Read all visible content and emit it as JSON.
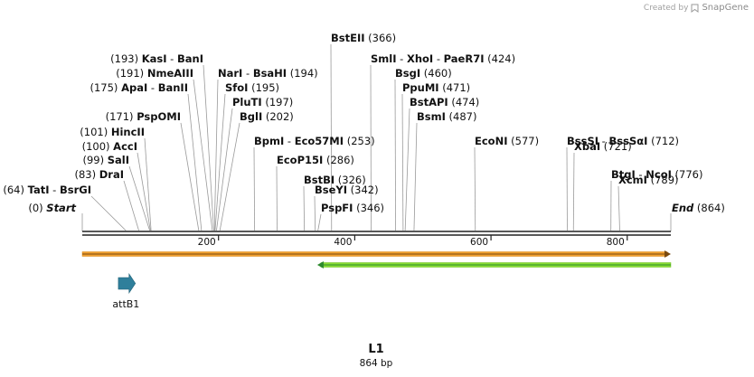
{
  "credit": {
    "prefix": "Created by",
    "brand": "SnapGene",
    "icon": "snapgene-logo-icon"
  },
  "sequence": {
    "name": "L1",
    "length": 864,
    "length_label": "864 bp"
  },
  "ends": {
    "start_label": "Start",
    "start_pos": "(0)",
    "end_label": "End",
    "end_pos": "(864)"
  },
  "axis": {
    "ticks": [
      200,
      400,
      600,
      800
    ]
  },
  "colors": {
    "forward_bar": "#f0a030",
    "forward_bar_edge": "#e08a10",
    "reverse_bar": "#88dd33",
    "reverse_bar_edge": "#2d8a2d",
    "arrow_dark": "#7a4a10",
    "feature": "#2f7f9b"
  },
  "sites": [
    {
      "cut": 64,
      "names": [
        "TatI",
        "BsrGI"
      ],
      "pos_label": "(64)",
      "pos_side": "left"
    },
    {
      "cut": 83,
      "names": [
        "DraI"
      ],
      "pos_label": "(83)",
      "pos_side": "left"
    },
    {
      "cut": 99,
      "names": [
        "SalI"
      ],
      "pos_label": "(99)",
      "pos_side": "left"
    },
    {
      "cut": 100,
      "names": [
        "AccI"
      ],
      "pos_label": "(100)",
      "pos_side": "left"
    },
    {
      "cut": 101,
      "names": [
        "HincII"
      ],
      "pos_label": "(101)",
      "pos_side": "left"
    },
    {
      "cut": 171,
      "names": [
        "PspOMI"
      ],
      "pos_label": "(171)",
      "pos_side": "left"
    },
    {
      "cut": 175,
      "names": [
        "ApaI",
        "BanII"
      ],
      "pos_label": "(175)",
      "pos_side": "left"
    },
    {
      "cut": 191,
      "names": [
        "NmeAIII"
      ],
      "pos_label": "(191)",
      "pos_side": "left"
    },
    {
      "cut": 193,
      "names": [
        "KasI",
        "BanI"
      ],
      "pos_label": "(193)",
      "pos_side": "left"
    },
    {
      "cut": 194,
      "names": [
        "NarI",
        "BsaHI"
      ],
      "pos_label": "(194)",
      "pos_side": "right"
    },
    {
      "cut": 195,
      "names": [
        "SfoI"
      ],
      "pos_label": "(195)",
      "pos_side": "right"
    },
    {
      "cut": 197,
      "names": [
        "PluTI"
      ],
      "pos_label": "(197)",
      "pos_side": "right"
    },
    {
      "cut": 202,
      "names": [
        "BglI"
      ],
      "pos_label": "(202)",
      "pos_side": "right"
    },
    {
      "cut": 253,
      "names": [
        "BpmI",
        "Eco57MI"
      ],
      "pos_label": "(253)",
      "pos_side": "right"
    },
    {
      "cut": 286,
      "names": [
        "EcoP15I"
      ],
      "pos_label": "(286)",
      "pos_side": "right"
    },
    {
      "cut": 326,
      "names": [
        "BstBI"
      ],
      "pos_label": "(326)",
      "pos_side": "right"
    },
    {
      "cut": 342,
      "names": [
        "BseYI"
      ],
      "pos_label": "(342)",
      "pos_side": "right"
    },
    {
      "cut": 346,
      "names": [
        "PspFI"
      ],
      "pos_label": "(346)",
      "pos_side": "right"
    },
    {
      "cut": 366,
      "names": [
        "BstEII"
      ],
      "pos_label": "(366)",
      "pos_side": "right"
    },
    {
      "cut": 424,
      "names": [
        "SmlI",
        "XhoI",
        "PaeR7I"
      ],
      "pos_label": "(424)",
      "pos_side": "right"
    },
    {
      "cut": 460,
      "names": [
        "BsgI"
      ],
      "pos_label": "(460)",
      "pos_side": "right"
    },
    {
      "cut": 471,
      "names": [
        "PpuMI"
      ],
      "pos_label": "(471)",
      "pos_side": "right"
    },
    {
      "cut": 474,
      "names": [
        "BstAPI"
      ],
      "pos_label": "(474)",
      "pos_side": "right"
    },
    {
      "cut": 487,
      "names": [
        "BsmI"
      ],
      "pos_label": "(487)",
      "pos_side": "right"
    },
    {
      "cut": 577,
      "names": [
        "EcoNI"
      ],
      "pos_label": "(577)",
      "pos_side": "right"
    },
    {
      "cut": 712,
      "names": [
        "BssSI",
        "BssSαI"
      ],
      "pos_label": "(712)",
      "pos_side": "right"
    },
    {
      "cut": 721,
      "names": [
        "XbaI"
      ],
      "pos_label": "(721)",
      "pos_side": "right"
    },
    {
      "cut": 776,
      "names": [
        "BtgI",
        "NcoI"
      ],
      "pos_label": "(776)",
      "pos_side": "right"
    },
    {
      "cut": 789,
      "names": [
        "XcmI"
      ],
      "pos_label": "(789)",
      "pos_side": "right"
    }
  ],
  "tracks": [
    {
      "name": "forward-track",
      "strand": "forward",
      "start": 0,
      "end": 864
    },
    {
      "name": "reverse-track",
      "strand": "reverse",
      "start": 345,
      "end": 864
    }
  ],
  "features": [
    {
      "name": "attB1",
      "start": 53,
      "end": 78,
      "direction": "forward"
    }
  ]
}
